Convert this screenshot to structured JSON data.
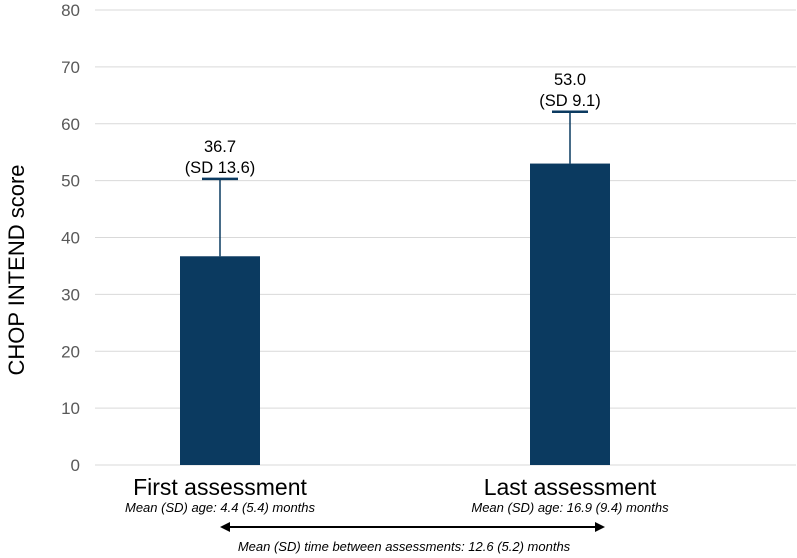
{
  "chart_data": {
    "type": "bar",
    "ylabel": "CHOP INTEND score",
    "ylim": [
      0,
      80
    ],
    "yticks": [
      0,
      10,
      20,
      30,
      40,
      50,
      60,
      70,
      80
    ],
    "grid": true,
    "categories": [
      "First assessment",
      "Last assessment"
    ],
    "category_notes": [
      "Mean (SD) age: 4.4 (5.4) months",
      "Mean (SD) age: 16.9 (9.4) months"
    ],
    "values": [
      36.7,
      53.0
    ],
    "sd": [
      13.6,
      9.1
    ],
    "value_labels": [
      "36.7",
      "53.0"
    ],
    "sd_labels": [
      "(SD 13.6)",
      "(SD 9.1)"
    ],
    "interval_note": "Mean (SD) time between assessments: 12.6 (5.2) months",
    "colors": {
      "bar": "#0b3a60",
      "grid": "#d9d9d9",
      "axis_text": "#595959",
      "arrow": "#000000"
    }
  }
}
